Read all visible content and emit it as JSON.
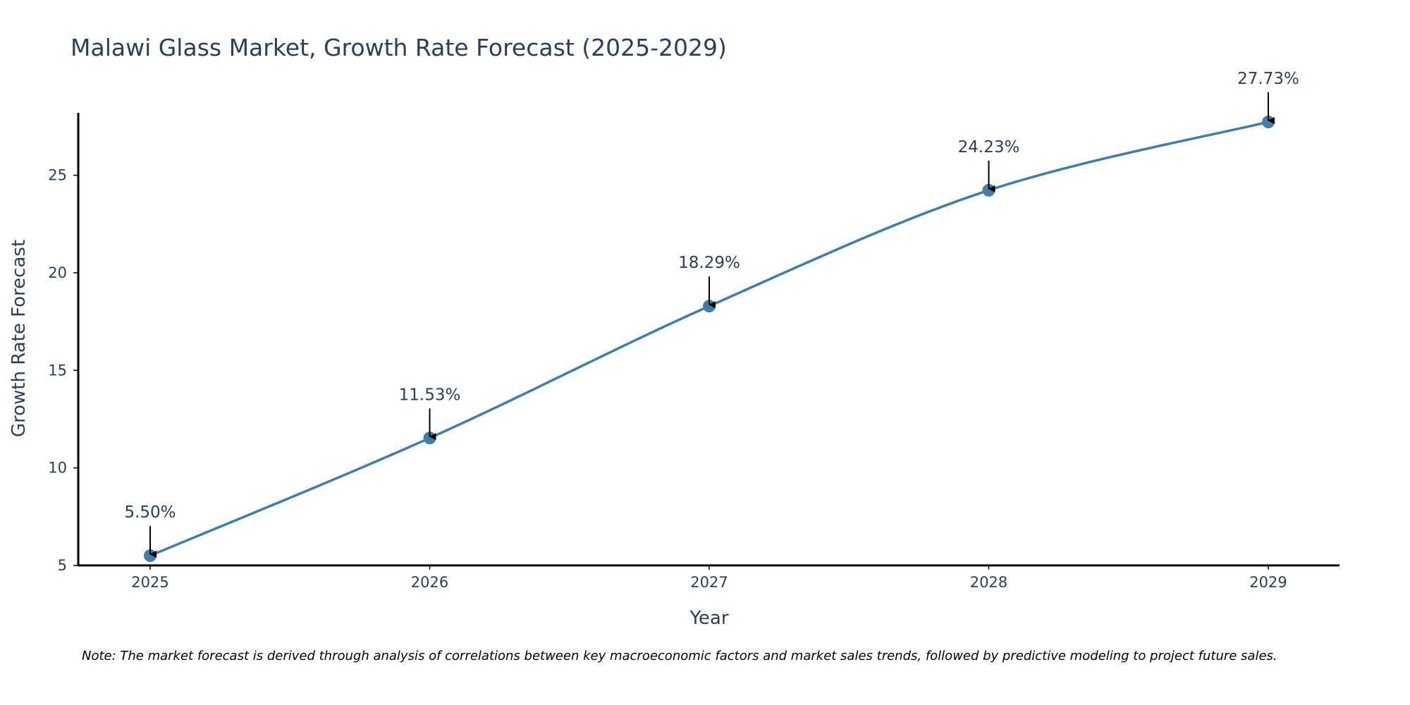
{
  "chart_data": {
    "type": "line",
    "title": "Malawi Glass Market, Growth Rate Forecast (2025-2029)",
    "xlabel": "Year",
    "ylabel": "Growth Rate Forecast",
    "categories": [
      "2025",
      "2026",
      "2027",
      "2028",
      "2029"
    ],
    "values": [
      5.5,
      11.53,
      18.29,
      24.23,
      27.73
    ],
    "data_labels": [
      "5.50%",
      "11.53%",
      "18.29%",
      "24.23%",
      "27.73%"
    ],
    "yticks": [
      5,
      10,
      15,
      20,
      25
    ],
    "ylim": [
      5,
      28.2
    ],
    "grid": false,
    "line_shape": "spline",
    "series_color": "#3f7ea9",
    "axis_color": "#000000",
    "text_color": "#2a3f5f"
  },
  "footer": {
    "note": "Note: The market forecast is derived through analysis of correlations between key macroeconomic factors and market sales trends, followed by predictive modeling to project future sales."
  }
}
